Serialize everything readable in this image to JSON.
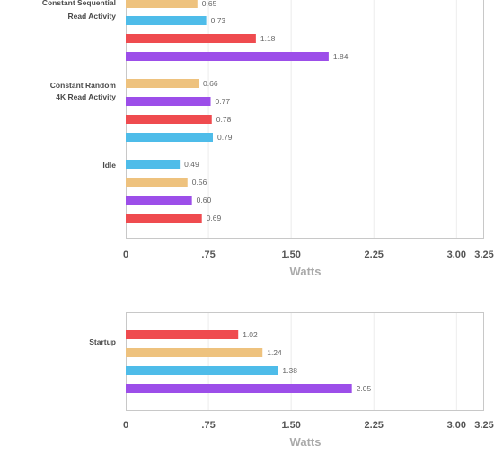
{
  "colors": {
    "red": "#ef4b4f",
    "orange": "#eec27e",
    "blue": "#4ebce9",
    "purple": "#9c4ee9",
    "grid": "#ececec",
    "frame": "#c8c8c8"
  },
  "chart_data": [
    {
      "type": "bar",
      "orientation": "horizontal",
      "xlabel": "Watts",
      "xlim": [
        0,
        3.25
      ],
      "xticks": [
        0,
        0.75,
        1.5,
        2.25,
        3.0,
        3.25
      ],
      "xtick_labels": [
        "0",
        ".75",
        "1.50",
        "2.25",
        "3.00",
        "3.25"
      ],
      "grid": true,
      "groups": [
        {
          "label": [
            "Constant Sequential",
            "Read Activity"
          ],
          "bars": [
            {
              "value": 0.65,
              "label": "0.65",
              "color": "orange"
            },
            {
              "value": 0.73,
              "label": "0.73",
              "color": "blue"
            },
            {
              "value": 1.18,
              "label": "1.18",
              "color": "red"
            },
            {
              "value": 1.84,
              "label": "1.84",
              "color": "purple"
            }
          ]
        },
        {
          "label": [
            "Constant Random",
            "4K Read Activity"
          ],
          "bars": [
            {
              "value": 0.66,
              "label": "0.66",
              "color": "orange"
            },
            {
              "value": 0.77,
              "label": "0.77",
              "color": "purple"
            },
            {
              "value": 0.78,
              "label": "0.78",
              "color": "red"
            },
            {
              "value": 0.79,
              "label": "0.79",
              "color": "blue"
            }
          ]
        },
        {
          "label": [
            "Idle"
          ],
          "bars": [
            {
              "value": 0.49,
              "label": "0.49",
              "color": "blue"
            },
            {
              "value": 0.56,
              "label": "0.56",
              "color": "orange"
            },
            {
              "value": 0.6,
              "label": "0.60",
              "color": "purple"
            },
            {
              "value": 0.69,
              "label": "0.69",
              "color": "red"
            }
          ]
        }
      ]
    },
    {
      "type": "bar",
      "orientation": "horizontal",
      "xlabel": "Watts",
      "xlim": [
        0,
        3.25
      ],
      "xticks": [
        0,
        0.75,
        1.5,
        2.25,
        3.0,
        3.25
      ],
      "xtick_labels": [
        "0",
        ".75",
        "1.50",
        "2.25",
        "3.00",
        "3.25"
      ],
      "grid": true,
      "groups": [
        {
          "label": [
            "Startup"
          ],
          "bars": [
            {
              "value": 1.02,
              "label": "1.02",
              "color": "red"
            },
            {
              "value": 1.24,
              "label": "1.24",
              "color": "orange"
            },
            {
              "value": 1.38,
              "label": "1.38",
              "color": "blue"
            },
            {
              "value": 2.05,
              "label": "2.05",
              "color": "purple"
            }
          ]
        }
      ]
    }
  ]
}
